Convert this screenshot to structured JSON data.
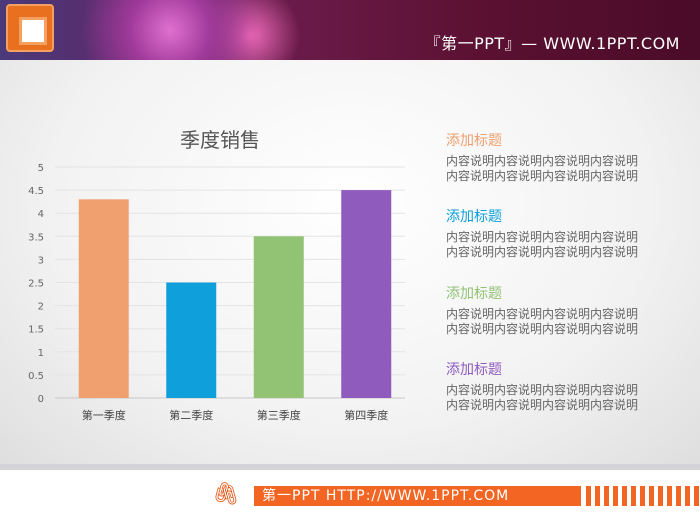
{
  "header": {
    "site_text": "『第一PPT』— WWW.1PPT.COM",
    "logo_icon": "powerpoint-icon"
  },
  "chart_data": {
    "type": "bar",
    "title": "季度销售",
    "categories": [
      "第一季度",
      "第二季度",
      "第三季度",
      "第四季度"
    ],
    "values": [
      4.3,
      2.5,
      3.5,
      4.5
    ],
    "colors": [
      "#f0a06e",
      "#0fa0dc",
      "#92c274",
      "#8f5bbd"
    ],
    "ylim": [
      0,
      5
    ],
    "yticks": [
      "0",
      "0.5",
      "1",
      "1.5",
      "2",
      "2.5",
      "3",
      "3.5",
      "4",
      "4.5",
      "5"
    ],
    "grid": true
  },
  "sections": [
    {
      "title": "添加标题",
      "color": "#f0a06e",
      "lines": [
        "内容说明内容说明内容说明内容说明",
        "内容说明内容说明内容说明内容说明"
      ]
    },
    {
      "title": "添加标题",
      "color": "#0fa0dc",
      "lines": [
        "内容说明内容说明内容说明内容说明",
        "内容说明内容说明内容说明内容说明"
      ]
    },
    {
      "title": "添加标题",
      "color": "#92c274",
      "lines": [
        "内容说明内容说明内容说明内容说明",
        "内容说明内容说明内容说明内容说明"
      ]
    },
    {
      "title": "添加标题",
      "color": "#8f5bbd",
      "lines": [
        "内容说明内容说明内容说明内容说明",
        "内容说明内容说明内容说明内容说明"
      ]
    }
  ],
  "footer": {
    "text": "第一PPT HTTP://WWW.1PPT.COM",
    "icon": "paperclip-icon"
  }
}
